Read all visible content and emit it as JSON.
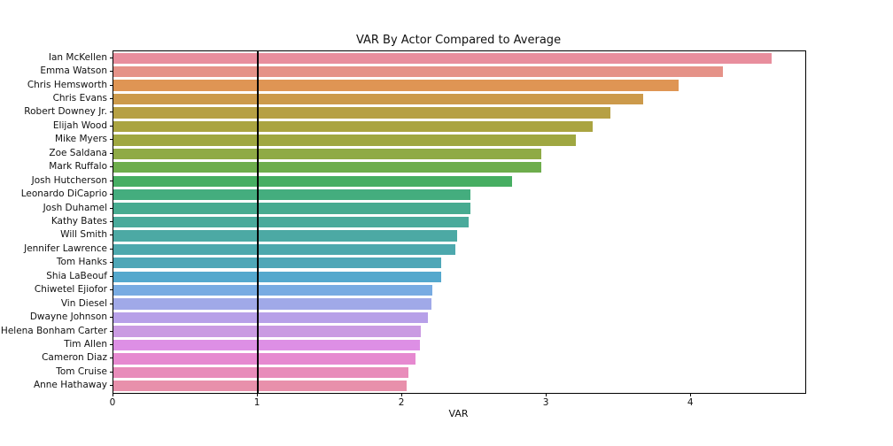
{
  "chart_data": {
    "type": "bar",
    "orientation": "horizontal",
    "title": "VAR By Actor Compared to Average",
    "xlabel": "VAR",
    "ylabel": "",
    "xlim": [
      0,
      4.79
    ],
    "xticks": [
      "0",
      "1",
      "2",
      "3",
      "4"
    ],
    "xtick_values": [
      0,
      1,
      2,
      3,
      4
    ],
    "grid": false,
    "legend": "none",
    "reference_line_x": 1,
    "reference_line_color": "#000000",
    "categories": [
      "Ian McKellen",
      "Emma Watson",
      "Chris Hemsworth",
      "Chris Evans",
      "Robert Downey Jr.",
      "Elijah Wood",
      "Mike Myers",
      "Zoe Saldana",
      "Mark Ruffalo",
      "Josh Hutcherson",
      "Leonardo DiCaprio",
      "Josh Duhamel",
      "Kathy Bates",
      "Will Smith",
      "Jennifer Lawrence",
      "Tom Hanks",
      "Shia LaBeouf",
      "Chiwetel Ejiofor",
      "Vin Diesel",
      "Dwayne Johnson",
      "Helena Bonham Carter",
      "Tim Allen",
      "Cameron Diaz",
      "Tom Cruise",
      "Anne Hathaway"
    ],
    "values": [
      4.56,
      4.22,
      3.91,
      3.67,
      3.44,
      3.32,
      3.2,
      2.96,
      2.96,
      2.76,
      2.47,
      2.47,
      2.46,
      2.38,
      2.37,
      2.27,
      2.27,
      2.21,
      2.2,
      2.18,
      2.13,
      2.12,
      2.09,
      2.04,
      2.03
    ],
    "colors": [
      "#e88e9d",
      "#e59288",
      "#df9554",
      "#cc9a4b",
      "#b6a044",
      "#aaa441",
      "#9fa741",
      "#8faa45",
      "#6ead4c",
      "#47ae62",
      "#44ad7e",
      "#47ab90",
      "#4aaa9b",
      "#4ca9a4",
      "#4da8ad",
      "#4fa7b7",
      "#54a8cd",
      "#78abe2",
      "#a0a9e8",
      "#b7a0e8",
      "#ca9be2",
      "#dd8fe5",
      "#e689d0",
      "#e88cba",
      "#e890ab"
    ]
  }
}
